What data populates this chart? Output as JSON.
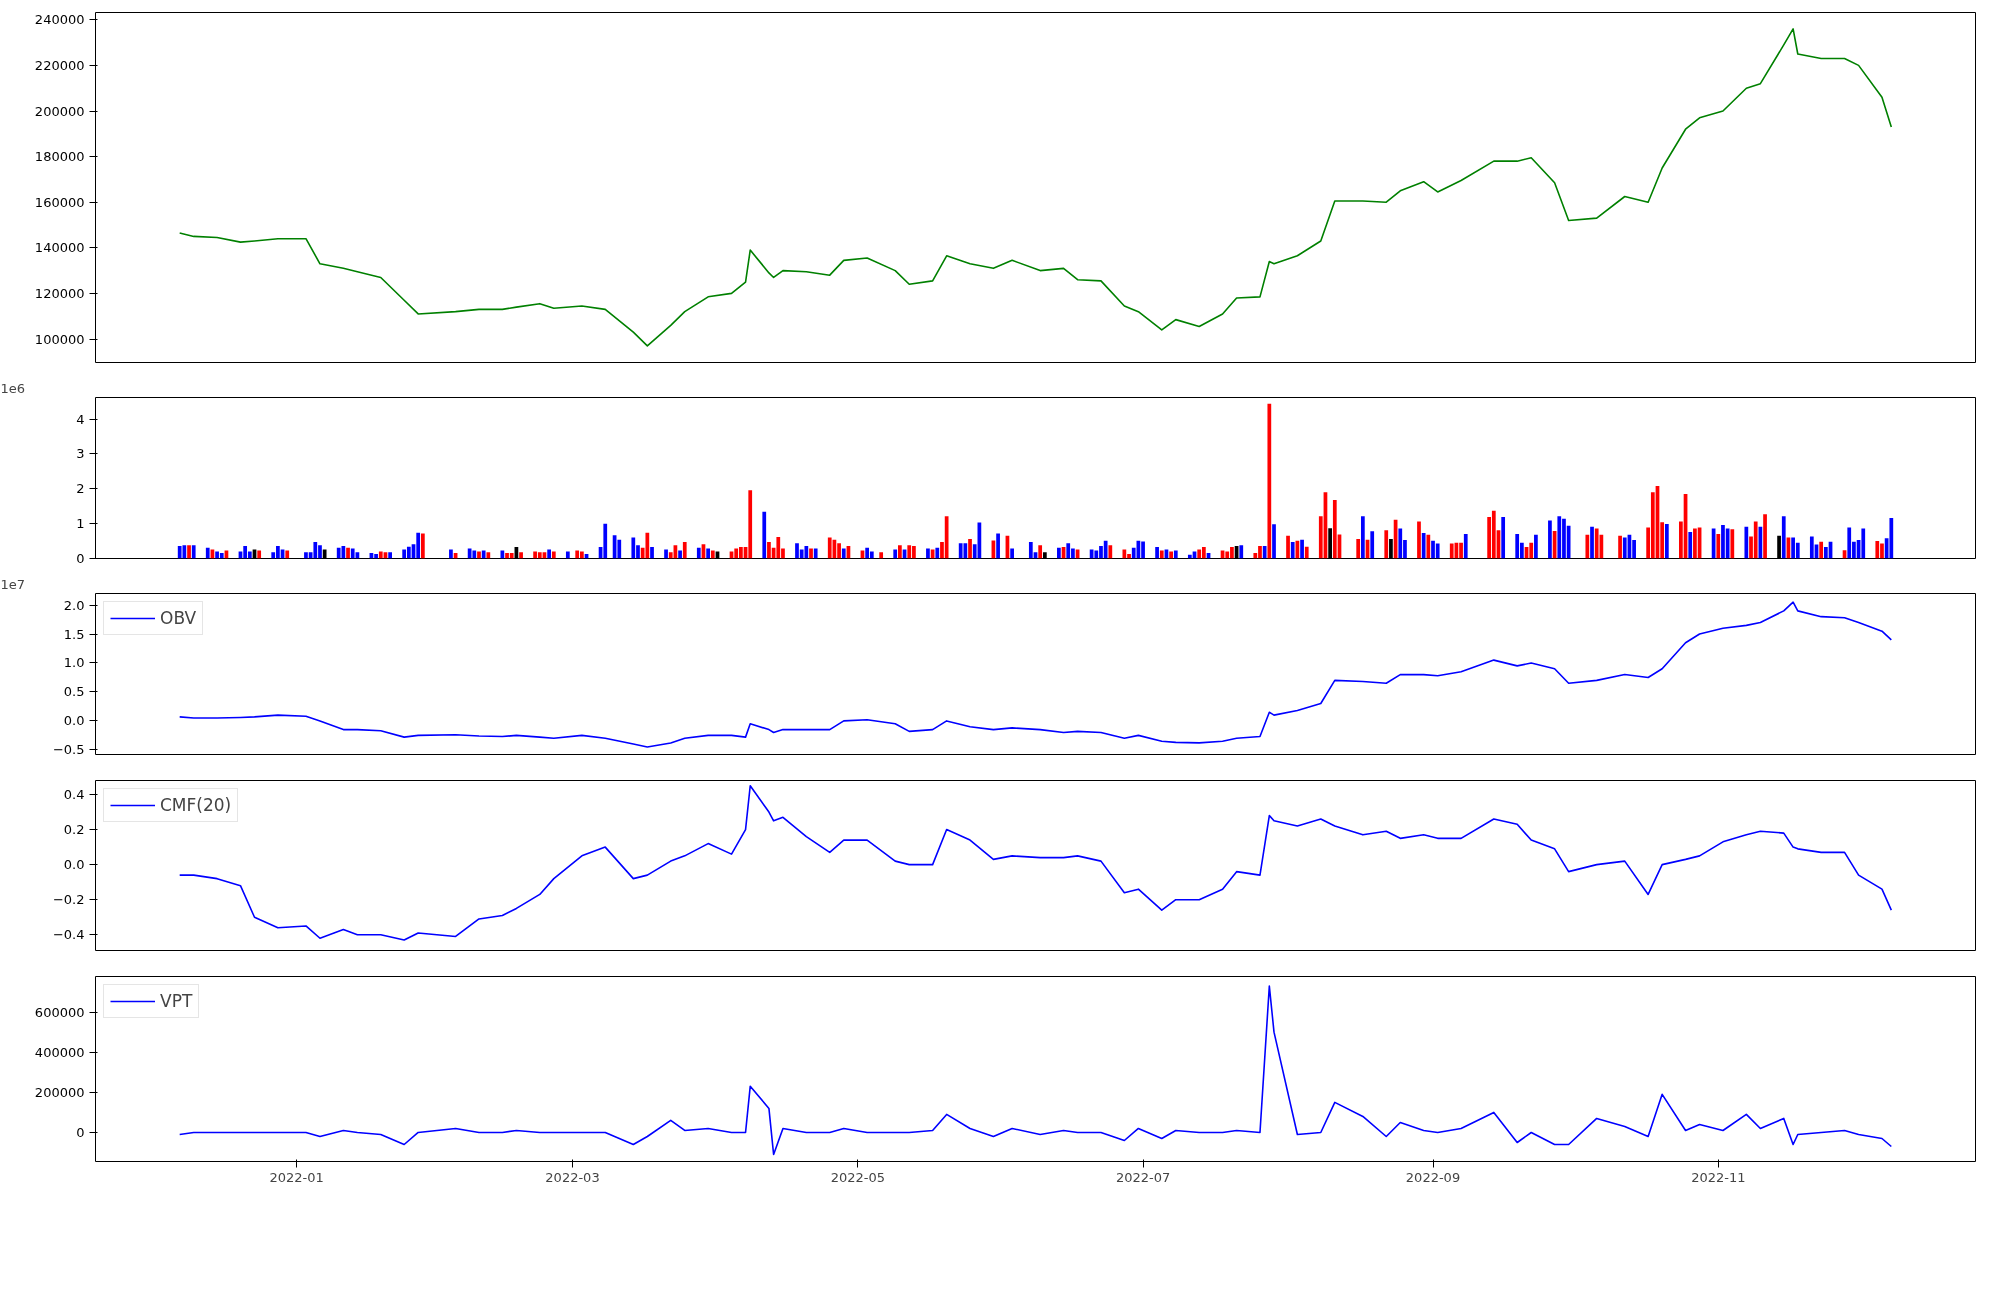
{
  "chart_data": [
    {
      "type": "line",
      "tick_labels": "y",
      "x": [
        "2021-12-07",
        "2021-12-10",
        "2021-12-15",
        "2021-12-20",
        "2021-12-23",
        "2021-12-28",
        "2022-01-03",
        "2022-01-06",
        "2022-01-11",
        "2022-01-14",
        "2022-01-19",
        "2022-01-24",
        "2022-01-27",
        "2022-02-04",
        "2022-02-09",
        "2022-02-14",
        "2022-02-17",
        "2022-02-22",
        "2022-02-25",
        "2022-03-03",
        "2022-03-08",
        "2022-03-14",
        "2022-03-17",
        "2022-03-22",
        "2022-03-25",
        "2022-03-30",
        "2022-04-04",
        "2022-04-07",
        "2022-04-08",
        "2022-04-12",
        "2022-04-13",
        "2022-04-15",
        "2022-04-20",
        "2022-04-25",
        "2022-04-28",
        "2022-05-03",
        "2022-05-09",
        "2022-05-12",
        "2022-05-17",
        "2022-05-20",
        "2022-05-25",
        "2022-05-30",
        "2022-06-03",
        "2022-06-09",
        "2022-06-14",
        "2022-06-17",
        "2022-06-22",
        "2022-06-27",
        "2022-06-30",
        "2022-07-05",
        "2022-07-08",
        "2022-07-13",
        "2022-07-18",
        "2022-07-21",
        "2022-07-26",
        "2022-07-28",
        "2022-07-29",
        "2022-08-03",
        "2022-08-08",
        "2022-08-11",
        "2022-08-17",
        "2022-08-22",
        "2022-08-25",
        "2022-08-30",
        "2022-09-02",
        "2022-09-07",
        "2022-09-14",
        "2022-09-19",
        "2022-09-22",
        "2022-09-27",
        "2022-09-30",
        "2022-10-06",
        "2022-10-12",
        "2022-10-17",
        "2022-10-20",
        "2022-10-25",
        "2022-10-28",
        "2022-11-02",
        "2022-11-07",
        "2022-11-10",
        "2022-11-15",
        "2022-11-17",
        "2022-11-18",
        "2022-11-23",
        "2022-11-28",
        "2022-12-01",
        "2022-12-06",
        "2022-12-08"
      ],
      "series": [
        {
          "color": "#008000",
          "values": [
            146500,
            145000,
            144500,
            142500,
            143000,
            144000,
            144000,
            133000,
            131000,
            129500,
            127000,
            117000,
            111000,
            112000,
            113000,
            113000,
            114000,
            115500,
            113500,
            114500,
            113000,
            103000,
            97000,
            106000,
            112000,
            118500,
            120000,
            125000,
            139000,
            129000,
            127000,
            130000,
            129500,
            128000,
            134500,
            135500,
            130000,
            124000,
            125500,
            136500,
            133000,
            131000,
            134500,
            130000,
            131000,
            126000,
            125500,
            114500,
            112000,
            104000,
            108500,
            105500,
            111000,
            118000,
            118500,
            134000,
            133000,
            136500,
            143000,
            160500,
            160500,
            160000,
            165000,
            169000,
            164500,
            169500,
            178000,
            178000,
            179500,
            168500,
            152000,
            153000,
            162500,
            160000,
            175000,
            192000,
            197000,
            200000,
            210000,
            212000,
            229000,
            236000,
            225000,
            223000,
            223000,
            220000,
            206000,
            193000
          ]
        }
      ],
      "xlim": [
        "2021-11-19",
        "2022-12-26"
      ],
      "ylim": [
        89700,
        243200
      ],
      "yticks": [
        100000,
        120000,
        140000,
        160000,
        180000,
        200000,
        220000,
        240000
      ]
    },
    {
      "type": "bar",
      "tick_labels": "y",
      "annotations": [
        "1e6"
      ],
      "x": [
        "2021-12-07",
        "2021-12-08",
        "2021-12-09",
        "2021-12-10",
        "2021-12-13",
        "2021-12-14",
        "2021-12-15",
        "2021-12-16",
        "2021-12-17",
        "2021-12-20",
        "2021-12-21",
        "2021-12-22",
        "2021-12-23",
        "2021-12-24",
        "2021-12-27",
        "2021-12-28",
        "2021-12-29",
        "2021-12-30",
        "2022-01-03",
        "2022-01-04",
        "2022-01-05",
        "2022-01-06",
        "2022-01-07",
        "2022-01-10",
        "2022-01-11",
        "2022-01-12",
        "2022-01-13",
        "2022-01-14",
        "2022-01-17",
        "2022-01-18",
        "2022-01-19",
        "2022-01-20",
        "2022-01-21",
        "2022-01-24",
        "2022-01-25",
        "2022-01-26",
        "2022-01-27",
        "2022-01-28",
        "2022-02-03",
        "2022-02-04",
        "2022-02-07",
        "2022-02-08",
        "2022-02-09",
        "2022-02-10",
        "2022-02-11",
        "2022-02-14",
        "2022-02-15",
        "2022-02-16",
        "2022-02-17",
        "2022-02-18",
        "2022-02-21",
        "2022-02-22",
        "2022-02-23",
        "2022-02-24",
        "2022-02-25",
        "2022-02-28",
        "2022-03-02",
        "2022-03-03",
        "2022-03-04",
        "2022-03-07",
        "2022-03-08",
        "2022-03-10",
        "2022-03-11",
        "2022-03-14",
        "2022-03-15",
        "2022-03-16",
        "2022-03-17",
        "2022-03-18",
        "2022-03-21",
        "2022-03-22",
        "2022-03-23",
        "2022-03-24",
        "2022-03-25",
        "2022-03-28",
        "2022-03-29",
        "2022-03-30",
        "2022-03-31",
        "2022-04-01",
        "2022-04-04",
        "2022-04-05",
        "2022-04-06",
        "2022-04-07",
        "2022-04-08",
        "2022-04-11",
        "2022-04-12",
        "2022-04-13",
        "2022-04-14",
        "2022-04-15",
        "2022-04-18",
        "2022-04-19",
        "2022-04-20",
        "2022-04-21",
        "2022-04-22",
        "2022-04-25",
        "2022-04-26",
        "2022-04-27",
        "2022-04-28",
        "2022-04-29",
        "2022-05-02",
        "2022-05-03",
        "2022-05-04",
        "2022-05-06",
        "2022-05-09",
        "2022-05-10",
        "2022-05-11",
        "2022-05-12",
        "2022-05-13",
        "2022-05-16",
        "2022-05-17",
        "2022-05-18",
        "2022-05-19",
        "2022-05-20",
        "2022-05-23",
        "2022-05-24",
        "2022-05-25",
        "2022-05-26",
        "2022-05-27",
        "2022-05-30",
        "2022-05-31",
        "2022-06-02",
        "2022-06-03",
        "2022-06-07",
        "2022-06-08",
        "2022-06-09",
        "2022-06-10",
        "2022-06-13",
        "2022-06-14",
        "2022-06-15",
        "2022-06-16",
        "2022-06-17",
        "2022-06-20",
        "2022-06-21",
        "2022-06-22",
        "2022-06-23",
        "2022-06-24",
        "2022-06-27",
        "2022-06-28",
        "2022-06-29",
        "2022-06-30",
        "2022-07-01",
        "2022-07-04",
        "2022-07-05",
        "2022-07-06",
        "2022-07-07",
        "2022-07-08",
        "2022-07-11",
        "2022-07-12",
        "2022-07-13",
        "2022-07-14",
        "2022-07-15",
        "2022-07-18",
        "2022-07-19",
        "2022-07-20",
        "2022-07-21",
        "2022-07-22",
        "2022-07-25",
        "2022-07-26",
        "2022-07-27",
        "2022-07-28",
        "2022-07-29",
        "2022-08-01",
        "2022-08-02",
        "2022-08-03",
        "2022-08-04",
        "2022-08-05",
        "2022-08-08",
        "2022-08-09",
        "2022-08-10",
        "2022-08-11",
        "2022-08-12",
        "2022-08-16",
        "2022-08-17",
        "2022-08-18",
        "2022-08-19",
        "2022-08-22",
        "2022-08-23",
        "2022-08-24",
        "2022-08-25",
        "2022-08-26",
        "2022-08-29",
        "2022-08-30",
        "2022-08-31",
        "2022-09-01",
        "2022-09-02",
        "2022-09-05",
        "2022-09-06",
        "2022-09-07",
        "2022-09-08",
        "2022-09-13",
        "2022-09-14",
        "2022-09-15",
        "2022-09-16",
        "2022-09-19",
        "2022-09-20",
        "2022-09-21",
        "2022-09-22",
        "2022-09-23",
        "2022-09-26",
        "2022-09-27",
        "2022-09-28",
        "2022-09-29",
        "2022-09-30",
        "2022-10-04",
        "2022-10-05",
        "2022-10-06",
        "2022-10-07",
        "2022-10-11",
        "2022-10-12",
        "2022-10-13",
        "2022-10-14",
        "2022-10-17",
        "2022-10-18",
        "2022-10-19",
        "2022-10-20",
        "2022-10-21",
        "2022-10-24",
        "2022-10-25",
        "2022-10-26",
        "2022-10-27",
        "2022-10-28",
        "2022-10-31",
        "2022-11-01",
        "2022-11-02",
        "2022-11-03",
        "2022-11-04",
        "2022-11-07",
        "2022-11-08",
        "2022-11-09",
        "2022-11-10",
        "2022-11-11",
        "2022-11-14",
        "2022-11-15",
        "2022-11-16",
        "2022-11-17",
        "2022-11-18",
        "2022-11-21",
        "2022-11-22",
        "2022-11-23",
        "2022-11-24",
        "2022-11-25",
        "2022-11-28",
        "2022-11-29",
        "2022-11-30",
        "2022-12-01",
        "2022-12-02",
        "2022-12-05",
        "2022-12-06",
        "2022-12-07",
        "2022-12-08"
      ],
      "values": [
        0.36,
        0.38,
        0.38,
        0.38,
        0.31,
        0.26,
        0.2,
        0.16,
        0.23,
        0.2,
        0.36,
        0.2,
        0.26,
        0.23,
        0.18,
        0.36,
        0.26,
        0.23,
        0.18,
        0.18,
        0.47,
        0.38,
        0.26,
        0.31,
        0.36,
        0.31,
        0.29,
        0.18,
        0.16,
        0.13,
        0.2,
        0.18,
        0.18,
        0.26,
        0.34,
        0.41,
        0.74,
        0.72,
        0.26,
        0.16,
        0.29,
        0.23,
        0.2,
        0.23,
        0.18,
        0.23,
        0.16,
        0.16,
        0.33,
        0.18,
        0.2,
        0.18,
        0.18,
        0.26,
        0.2,
        0.2,
        0.23,
        0.2,
        0.13,
        0.33,
        1.0,
        0.67,
        0.54,
        0.6,
        0.38,
        0.31,
        0.74,
        0.33,
        0.26,
        0.18,
        0.38,
        0.23,
        0.47,
        0.31,
        0.41,
        0.29,
        0.23,
        0.2,
        0.2,
        0.29,
        0.33,
        0.33,
        1.96,
        1.34,
        0.47,
        0.31,
        0.62,
        0.29,
        0.44,
        0.26,
        0.36,
        0.29,
        0.29,
        0.6,
        0.54,
        0.44,
        0.29,
        0.36,
        0.23,
        0.31,
        0.2,
        0.18,
        0.26,
        0.38,
        0.26,
        0.38,
        0.36,
        0.29,
        0.26,
        0.31,
        0.47,
        1.21,
        0.44,
        0.44,
        0.56,
        0.41,
        1.03,
        0.52,
        0.72,
        0.65,
        0.29,
        0.47,
        0.18,
        0.38,
        0.18,
        0.31,
        0.33,
        0.44,
        0.29,
        0.26,
        0.26,
        0.23,
        0.36,
        0.51,
        0.38,
        0.26,
        0.13,
        0.31,
        0.51,
        0.49,
        0.33,
        0.23,
        0.26,
        0.2,
        0.23,
        0.11,
        0.2,
        0.26,
        0.33,
        0.16,
        0.23,
        0.2,
        0.33,
        0.36,
        0.38,
        0.16,
        0.36,
        0.36,
        4.44,
        0.98,
        0.65,
        0.47,
        0.51,
        0.54,
        0.34,
        1.21,
        1.9,
        0.87,
        1.68,
        0.69,
        0.56,
        1.21,
        0.54,
        0.78,
        0.81,
        0.56,
        1.11,
        0.86,
        0.53,
        1.06,
        0.73,
        0.68,
        0.51,
        0.43,
        0.43,
        0.45,
        0.45,
        0.7,
        1.19,
        1.37,
        0.81,
        1.19,
        0.7,
        0.45,
        0.33,
        0.45,
        0.68,
        1.09,
        0.79,
        1.21,
        1.14,
        0.94,
        0.68,
        0.91,
        0.86,
        0.68,
        0.65,
        0.6,
        0.68,
        0.53,
        0.89,
        1.9,
        2.08,
        1.04,
        0.99,
        1.06,
        1.85,
        0.76,
        0.86,
        0.89,
        0.86,
        0.7,
        0.96,
        0.86,
        0.84,
        0.91,
        0.63,
        1.06,
        0.91,
        1.27,
        0.65,
        1.21,
        0.6,
        0.6,
        0.45,
        0.63,
        0.4,
        0.48,
        0.33,
        0.48,
        0.24,
        0.89,
        0.48,
        0.53,
        0.86,
        0.5,
        0.43,
        0.58,
        1.16
      ],
      "colors": [
        "#0000ff",
        "#0000ff",
        "#ff0000",
        "#0000ff",
        "#0000ff",
        "#ff0000",
        "#0000ff",
        "#0000ff",
        "#ff0000",
        "#0000ff",
        "#0000ff",
        "#0000ff",
        "#000000",
        "#ff0000",
        "#0000ff",
        "#0000ff",
        "#0000ff",
        "#ff0000",
        "#0000ff",
        "#0000ff",
        "#0000ff",
        "#0000ff",
        "#000000",
        "#0000ff",
        "#0000ff",
        "#ff0000",
        "#0000ff",
        "#0000ff",
        "#0000ff",
        "#0000ff",
        "#ff0000",
        "#ff0000",
        "#0000ff",
        "#0000ff",
        "#0000ff",
        "#0000ff",
        "#0000ff",
        "#ff0000",
        "#0000ff",
        "#ff0000",
        "#0000ff",
        "#0000ff",
        "#ff0000",
        "#0000ff",
        "#ff0000",
        "#0000ff",
        "#ff0000",
        "#ff0000",
        "#000000",
        "#ff0000",
        "#ff0000",
        "#ff0000",
        "#ff0000",
        "#0000ff",
        "#ff0000",
        "#0000ff",
        "#ff0000",
        "#ff0000",
        "#0000ff",
        "#0000ff",
        "#0000ff",
        "#0000ff",
        "#0000ff",
        "#0000ff",
        "#0000ff",
        "#ff0000",
        "#ff0000",
        "#0000ff",
        "#0000ff",
        "#ff0000",
        "#ff0000",
        "#0000ff",
        "#ff0000",
        "#0000ff",
        "#ff0000",
        "#0000ff",
        "#ff0000",
        "#000000",
        "#ff0000",
        "#ff0000",
        "#ff0000",
        "#ff0000",
        "#ff0000",
        "#0000ff",
        "#ff0000",
        "#ff0000",
        "#ff0000",
        "#ff0000",
        "#0000ff",
        "#0000ff",
        "#0000ff",
        "#ff0000",
        "#0000ff",
        "#ff0000",
        "#ff0000",
        "#ff0000",
        "#0000ff",
        "#ff0000",
        "#ff0000",
        "#0000ff",
        "#0000ff",
        "#ff0000",
        "#0000ff",
        "#ff0000",
        "#0000ff",
        "#ff0000",
        "#ff0000",
        "#0000ff",
        "#ff0000",
        "#0000ff",
        "#ff0000",
        "#ff0000",
        "#0000ff",
        "#0000ff",
        "#ff0000",
        "#0000ff",
        "#0000ff",
        "#ff0000",
        "#0000ff",
        "#ff0000",
        "#0000ff",
        "#0000ff",
        "#0000ff",
        "#ff0000",
        "#000000",
        "#0000ff",
        "#ff0000",
        "#0000ff",
        "#0000ff",
        "#ff0000",
        "#0000ff",
        "#0000ff",
        "#0000ff",
        "#0000ff",
        "#ff0000",
        "#ff0000",
        "#ff0000",
        "#0000ff",
        "#0000ff",
        "#0000ff",
        "#0000ff",
        "#ff0000",
        "#0000ff",
        "#ff0000",
        "#0000ff",
        "#0000ff",
        "#0000ff",
        "#ff0000",
        "#ff0000",
        "#0000ff",
        "#ff0000",
        "#ff0000",
        "#ff0000",
        "#000000",
        "#0000ff",
        "#ff0000",
        "#ff0000",
        "#0000ff",
        "#ff0000",
        "#0000ff",
        "#ff0000",
        "#0000ff",
        "#ff0000",
        "#0000ff",
        "#ff0000",
        "#ff0000",
        "#ff0000",
        "#000000",
        "#ff0000",
        "#ff0000",
        "#ff0000",
        "#0000ff",
        "#ff0000",
        "#0000ff",
        "#ff0000",
        "#000000",
        "#ff0000",
        "#0000ff",
        "#0000ff",
        "#ff0000",
        "#0000ff",
        "#ff0000",
        "#0000ff",
        "#0000ff",
        "#ff0000",
        "#ff0000",
        "#ff0000",
        "#0000ff",
        "#ff0000",
        "#ff0000",
        "#ff0000",
        "#0000ff",
        "#0000ff",
        "#0000ff",
        "#ff0000",
        "#ff0000",
        "#0000ff",
        "#0000ff",
        "#ff0000",
        "#0000ff",
        "#0000ff",
        "#0000ff",
        "#ff0000",
        "#0000ff",
        "#ff0000",
        "#ff0000",
        "#ff0000",
        "#0000ff",
        "#0000ff",
        "#0000ff",
        "#ff0000",
        "#ff0000",
        "#ff0000",
        "#ff0000",
        "#0000ff",
        "#ff0000",
        "#ff0000",
        "#0000ff",
        "#ff0000",
        "#ff0000",
        "#0000ff",
        "#ff0000",
        "#0000ff",
        "#0000ff",
        "#ff0000",
        "#0000ff",
        "#ff0000",
        "#ff0000",
        "#0000ff",
        "#ff0000",
        "#000000",
        "#0000ff",
        "#ff0000",
        "#0000ff",
        "#0000ff",
        "#0000ff",
        "#0000ff",
        "#ff0000",
        "#0000ff",
        "#0000ff",
        "#ff0000",
        "#0000ff",
        "#0000ff",
        "#0000ff",
        "#0000ff",
        "#ff0000",
        "#ff0000",
        "#0000ff",
        "#0000ff"
      ],
      "xlim": [
        "2021-11-19",
        "2022-12-26"
      ],
      "ylim": [
        0,
        4.62
      ],
      "yticks": [
        0,
        1,
        2,
        3,
        4
      ]
    },
    {
      "type": "line",
      "tick_labels": "y",
      "annotations": [
        "1e7"
      ],
      "legend": "top left",
      "x": [
        "2021-12-07",
        "2021-12-10",
        "2021-12-15",
        "2021-12-20",
        "2021-12-23",
        "2021-12-28",
        "2022-01-03",
        "2022-01-06",
        "2022-01-11",
        "2022-01-14",
        "2022-01-19",
        "2022-01-24",
        "2022-01-27",
        "2022-02-04",
        "2022-02-09",
        "2022-02-14",
        "2022-02-17",
        "2022-02-22",
        "2022-02-25",
        "2022-03-03",
        "2022-03-08",
        "2022-03-14",
        "2022-03-17",
        "2022-03-22",
        "2022-03-25",
        "2022-03-30",
        "2022-04-04",
        "2022-04-07",
        "2022-04-08",
        "2022-04-12",
        "2022-04-13",
        "2022-04-15",
        "2022-04-20",
        "2022-04-25",
        "2022-04-28",
        "2022-05-03",
        "2022-05-09",
        "2022-05-12",
        "2022-05-17",
        "2022-05-20",
        "2022-05-25",
        "2022-05-30",
        "2022-06-03",
        "2022-06-09",
        "2022-06-14",
        "2022-06-17",
        "2022-06-22",
        "2022-06-27",
        "2022-06-30",
        "2022-07-05",
        "2022-07-08",
        "2022-07-13",
        "2022-07-18",
        "2022-07-21",
        "2022-07-26",
        "2022-07-28",
        "2022-07-29",
        "2022-08-03",
        "2022-08-08",
        "2022-08-11",
        "2022-08-17",
        "2022-08-22",
        "2022-08-25",
        "2022-08-30",
        "2022-09-02",
        "2022-09-07",
        "2022-09-14",
        "2022-09-19",
        "2022-09-22",
        "2022-09-27",
        "2022-09-30",
        "2022-10-06",
        "2022-10-12",
        "2022-10-17",
        "2022-10-20",
        "2022-10-25",
        "2022-10-28",
        "2022-11-02",
        "2022-11-07",
        "2022-11-10",
        "2022-11-15",
        "2022-11-17",
        "2022-11-18",
        "2022-11-23",
        "2022-11-28",
        "2022-12-01",
        "2022-12-06",
        "2022-12-08"
      ],
      "series": [
        {
          "name": "OBV",
          "color": "#0000ff",
          "values": [
            0.07,
            0.05,
            0.05,
            0.06,
            0.07,
            0.1,
            0.08,
            0.0,
            -0.15,
            -0.15,
            -0.17,
            -0.28,
            -0.25,
            -0.24,
            -0.26,
            -0.27,
            -0.25,
            -0.28,
            -0.3,
            -0.25,
            -0.3,
            -0.4,
            -0.45,
            -0.38,
            -0.3,
            -0.25,
            -0.25,
            -0.28,
            -0.05,
            -0.15,
            -0.2,
            -0.15,
            -0.15,
            -0.15,
            0.0,
            0.02,
            -0.05,
            -0.18,
            -0.15,
            0.0,
            -0.1,
            -0.15,
            -0.12,
            -0.15,
            -0.2,
            -0.18,
            -0.2,
            -0.3,
            -0.25,
            -0.35,
            -0.37,
            -0.38,
            -0.35,
            -0.3,
            -0.27,
            0.15,
            0.1,
            0.18,
            0.3,
            0.7,
            0.68,
            0.65,
            0.8,
            0.8,
            0.78,
            0.85,
            1.05,
            0.95,
            1.0,
            0.9,
            0.65,
            0.7,
            0.8,
            0.75,
            0.9,
            1.35,
            1.5,
            1.6,
            1.65,
            1.7,
            1.9,
            2.05,
            1.9,
            1.8,
            1.78,
            1.7,
            1.55,
            1.4
          ]
        }
      ],
      "xlim": [
        "2021-11-19",
        "2022-12-26"
      ],
      "ylim": [
        -0.58,
        2.2
      ],
      "yticks": [
        {
          "value": -0.5,
          "label": "−0.5"
        },
        {
          "value": 0,
          "label": "0.0"
        },
        {
          "value": 0.5,
          "label": "0.5"
        },
        {
          "value": 1,
          "label": "1.0"
        },
        {
          "value": 1.5,
          "label": "1.5"
        },
        {
          "value": 2,
          "label": "2.0"
        }
      ]
    },
    {
      "type": "line",
      "tick_labels": "y",
      "legend": "top left",
      "x": [
        "2021-12-07",
        "2021-12-10",
        "2021-12-15",
        "2021-12-20",
        "2021-12-23",
        "2021-12-28",
        "2022-01-03",
        "2022-01-06",
        "2022-01-11",
        "2022-01-14",
        "2022-01-19",
        "2022-01-24",
        "2022-01-27",
        "2022-02-04",
        "2022-02-09",
        "2022-02-14",
        "2022-02-17",
        "2022-02-22",
        "2022-02-25",
        "2022-03-03",
        "2022-03-08",
        "2022-03-14",
        "2022-03-17",
        "2022-03-22",
        "2022-03-25",
        "2022-03-30",
        "2022-04-04",
        "2022-04-07",
        "2022-04-08",
        "2022-04-12",
        "2022-04-13",
        "2022-04-15",
        "2022-04-20",
        "2022-04-25",
        "2022-04-28",
        "2022-05-03",
        "2022-05-09",
        "2022-05-12",
        "2022-05-17",
        "2022-05-20",
        "2022-05-25",
        "2022-05-30",
        "2022-06-03",
        "2022-06-09",
        "2022-06-14",
        "2022-06-17",
        "2022-06-22",
        "2022-06-27",
        "2022-06-30",
        "2022-07-05",
        "2022-07-08",
        "2022-07-13",
        "2022-07-18",
        "2022-07-21",
        "2022-07-26",
        "2022-07-28",
        "2022-07-29",
        "2022-08-03",
        "2022-08-08",
        "2022-08-11",
        "2022-08-17",
        "2022-08-22",
        "2022-08-25",
        "2022-08-30",
        "2022-09-02",
        "2022-09-07",
        "2022-09-14",
        "2022-09-19",
        "2022-09-22",
        "2022-09-27",
        "2022-09-30",
        "2022-10-06",
        "2022-10-12",
        "2022-10-17",
        "2022-10-20",
        "2022-10-25",
        "2022-10-28",
        "2022-11-02",
        "2022-11-07",
        "2022-11-10",
        "2022-11-15",
        "2022-11-17",
        "2022-11-18",
        "2022-11-23",
        "2022-11-28",
        "2022-12-01",
        "2022-12-06",
        "2022-12-08"
      ],
      "series": [
        {
          "name": "CMF(20)",
          "color": "#0000ff",
          "values": [
            -0.06,
            -0.06,
            -0.08,
            -0.12,
            -0.3,
            -0.36,
            -0.35,
            -0.42,
            -0.37,
            -0.4,
            -0.4,
            -0.43,
            -0.39,
            -0.41,
            -0.31,
            -0.29,
            -0.25,
            -0.17,
            -0.08,
            0.05,
            0.1,
            -0.08,
            -0.06,
            0.02,
            0.05,
            0.12,
            0.06,
            0.2,
            0.45,
            0.3,
            0.25,
            0.27,
            0.16,
            0.07,
            0.14,
            0.14,
            0.02,
            0.0,
            0.0,
            0.2,
            0.14,
            0.03,
            0.05,
            0.04,
            0.04,
            0.05,
            0.02,
            -0.16,
            -0.14,
            -0.26,
            -0.2,
            -0.2,
            -0.14,
            -0.04,
            -0.06,
            0.28,
            0.25,
            0.22,
            0.26,
            0.22,
            0.17,
            0.19,
            0.15,
            0.17,
            0.15,
            0.15,
            0.26,
            0.23,
            0.14,
            0.09,
            -0.04,
            0.0,
            0.02,
            -0.17,
            0.0,
            0.03,
            0.05,
            0.13,
            0.17,
            0.19,
            0.18,
            0.1,
            0.09,
            0.07,
            0.07,
            -0.06,
            -0.14,
            -0.26
          ]
        }
      ],
      "xlim": [
        "2021-11-19",
        "2022-12-26"
      ],
      "ylim": [
        -0.49,
        0.48
      ],
      "yticks": [
        {
          "value": -0.4,
          "label": "−0.4"
        },
        {
          "value": -0.2,
          "label": "−0.2"
        },
        {
          "value": 0,
          "label": "0.0"
        },
        {
          "value": 0.2,
          "label": "0.2"
        },
        {
          "value": 0.4,
          "label": "0.4"
        }
      ]
    },
    {
      "type": "line",
      "legend": "top left",
      "x": [
        "2021-12-07",
        "2021-12-10",
        "2021-12-15",
        "2021-12-20",
        "2021-12-23",
        "2021-12-28",
        "2022-01-03",
        "2022-01-06",
        "2022-01-11",
        "2022-01-14",
        "2022-01-19",
        "2022-01-24",
        "2022-01-27",
        "2022-02-04",
        "2022-02-09",
        "2022-02-14",
        "2022-02-17",
        "2022-02-22",
        "2022-02-25",
        "2022-03-03",
        "2022-03-08",
        "2022-03-14",
        "2022-03-17",
        "2022-03-22",
        "2022-03-25",
        "2022-03-30",
        "2022-04-04",
        "2022-04-07",
        "2022-04-08",
        "2022-04-12",
        "2022-04-13",
        "2022-04-15",
        "2022-04-20",
        "2022-04-25",
        "2022-04-28",
        "2022-05-03",
        "2022-05-09",
        "2022-05-12",
        "2022-05-17",
        "2022-05-20",
        "2022-05-25",
        "2022-05-30",
        "2022-06-03",
        "2022-06-09",
        "2022-06-14",
        "2022-06-17",
        "2022-06-22",
        "2022-06-27",
        "2022-06-30",
        "2022-07-05",
        "2022-07-08",
        "2022-07-13",
        "2022-07-18",
        "2022-07-21",
        "2022-07-26",
        "2022-07-28",
        "2022-07-29",
        "2022-08-03",
        "2022-08-08",
        "2022-08-11",
        "2022-08-17",
        "2022-08-22",
        "2022-08-25",
        "2022-08-30",
        "2022-09-02",
        "2022-09-07",
        "2022-09-14",
        "2022-09-19",
        "2022-09-22",
        "2022-09-27",
        "2022-09-30",
        "2022-10-06",
        "2022-10-12",
        "2022-10-17",
        "2022-10-20",
        "2022-10-25",
        "2022-10-28",
        "2022-11-02",
        "2022-11-07",
        "2022-11-10",
        "2022-11-15",
        "2022-11-17",
        "2022-11-18",
        "2022-11-23",
        "2022-11-28",
        "2022-12-01",
        "2022-12-06",
        "2022-12-08"
      ],
      "series": [
        {
          "name": "VPT",
          "color": "#0000ff",
          "values": [
            -10000,
            0,
            0,
            0,
            0,
            0,
            0,
            -20000,
            10000,
            0,
            -10000,
            -60000,
            0,
            20000,
            0,
            0,
            10000,
            0,
            0,
            0,
            0,
            -60000,
            -20000,
            60000,
            10000,
            20000,
            0,
            0,
            230000,
            120000,
            -110000,
            20000,
            0,
            0,
            20000,
            0,
            0,
            0,
            10000,
            90000,
            20000,
            -20000,
            20000,
            -10000,
            10000,
            0,
            0,
            -40000,
            20000,
            -30000,
            10000,
            0,
            0,
            10000,
            0,
            730000,
            500000,
            -10000,
            0,
            150000,
            80000,
            -20000,
            50000,
            10000,
            0,
            20000,
            100000,
            -50000,
            0,
            -60000,
            -60000,
            70000,
            30000,
            -20000,
            190000,
            10000,
            40000,
            10000,
            90000,
            20000,
            70000,
            -60000,
            -10000,
            0,
            10000,
            -10000,
            -30000,
            -70000
          ]
        }
      ],
      "xlim": [
        "2021-11-19",
        "2022-12-26"
      ],
      "ylim": [
        -144700,
        777600
      ],
      "yticks": [
        0,
        200000,
        400000,
        600000
      ],
      "xticks": [
        "2022-01",
        "2022-03",
        "2022-05",
        "2022-07",
        "2022-09",
        "2022-11"
      ]
    }
  ]
}
